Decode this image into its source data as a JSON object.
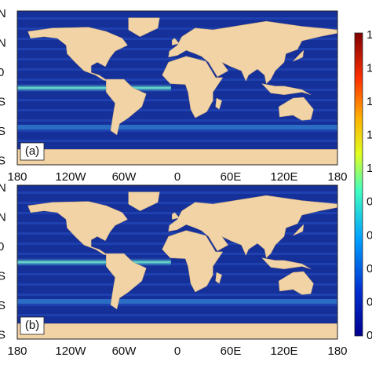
{
  "panels": [
    {
      "label": "(a)",
      "lat_labels": [
        "N",
        "N",
        "0",
        "S",
        "S",
        "S"
      ],
      "lon_labels": [
        "180",
        "120W",
        "60W",
        "0",
        "60E",
        "120E",
        "180"
      ]
    },
    {
      "label": "(b)",
      "lat_labels": [
        "N",
        "N",
        "0",
        "S",
        "S",
        "S"
      ],
      "lon_labels": [
        "180",
        "120W",
        "60W",
        "0",
        "60E",
        "120E",
        "180"
      ]
    }
  ],
  "colorbar": {
    "labels": [
      "1",
      "1",
      "1",
      "1",
      "1",
      "0",
      "0",
      "0",
      "0",
      "0"
    ]
  }
}
